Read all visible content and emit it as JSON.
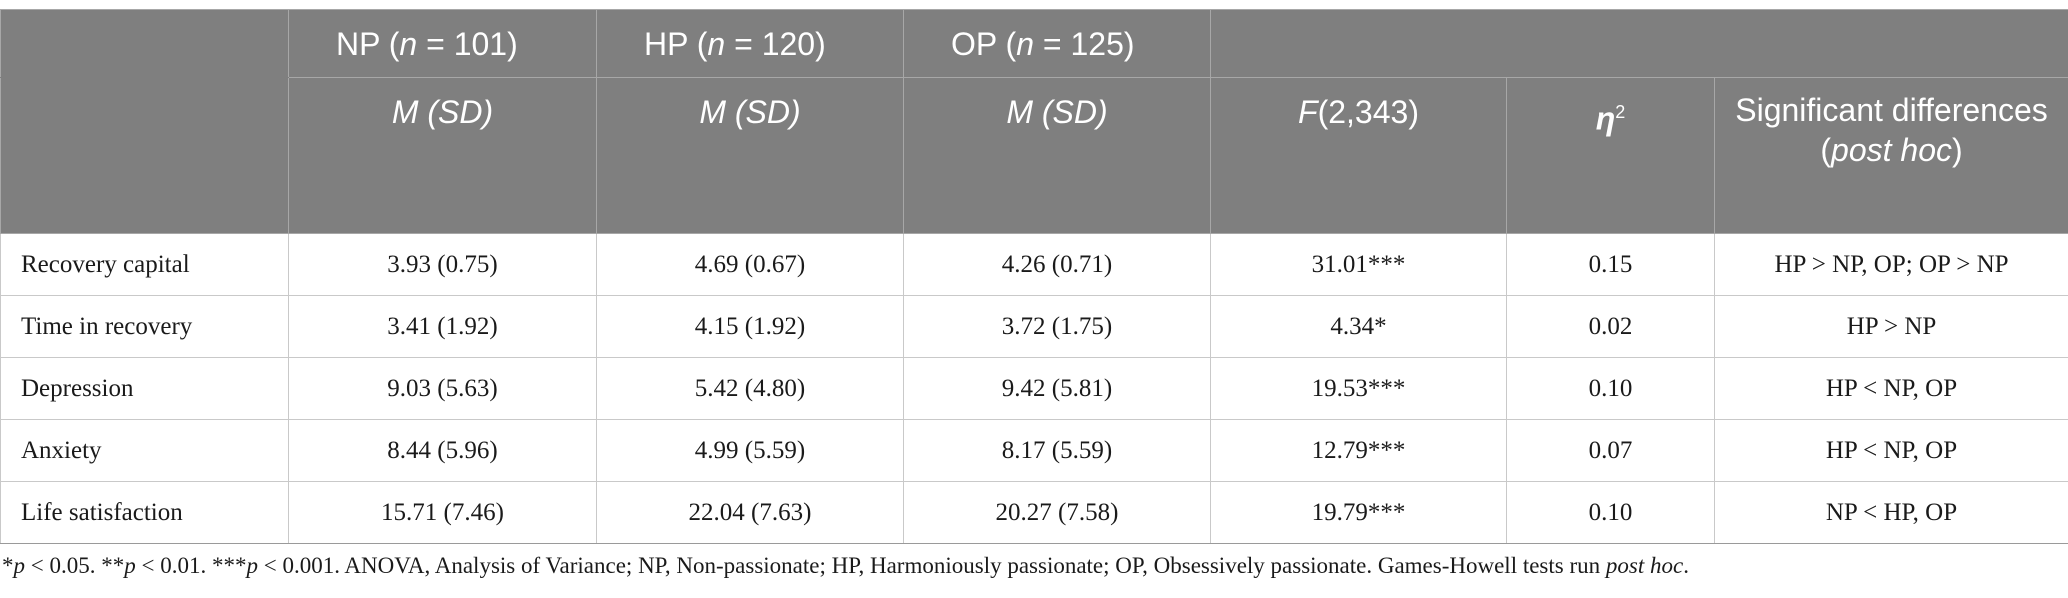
{
  "table": {
    "group_headers": [
      {
        "code": "NP",
        "n": "101"
      },
      {
        "code": "HP",
        "n": "120"
      },
      {
        "code": "OP",
        "n": "125"
      }
    ],
    "stat_header": "M (SD)",
    "f_header_letter": "F",
    "f_header_df": "(2,343)",
    "eta_header": "η",
    "eta_sup": "2",
    "sig_header_a": "Significant differences (",
    "sig_header_italic": "post hoc",
    "sig_header_b": ")",
    "rows": [
      {
        "label": "Recovery capital",
        "np": "3.93 (0.75)",
        "hp": "4.69 (0.67)",
        "op": "4.26 (0.71)",
        "f": "31.01***",
        "eta": "0.15",
        "sig": "HP > NP, OP; OP > NP"
      },
      {
        "label": "Time in recovery",
        "np": "3.41 (1.92)",
        "hp": "4.15 (1.92)",
        "op": "3.72 (1.75)",
        "f": "4.34*",
        "eta": "0.02",
        "sig": "HP > NP"
      },
      {
        "label": "Depression",
        "np": "9.03 (5.63)",
        "hp": "5.42 (4.80)",
        "op": "9.42 (5.81)",
        "f": "19.53***",
        "eta": "0.10",
        "sig": "HP < NP, OP"
      },
      {
        "label": "Anxiety",
        "np": "8.44 (5.96)",
        "hp": "4.99 (5.59)",
        "op": "8.17 (5.59)",
        "f": "12.79***",
        "eta": "0.07",
        "sig": "HP < NP, OP"
      },
      {
        "label": "Life satisfaction",
        "np": "15.71 (7.46)",
        "hp": "22.04 (7.63)",
        "op": "20.27 (7.58)",
        "f": "19.79***",
        "eta": "0.10",
        "sig": "NP < HP, OP"
      }
    ]
  },
  "footnote": {
    "star1": "*",
    "p1": "p",
    "t1": " < 0.05. **",
    "p2": "p",
    "t2": " < 0.01. ***",
    "p3": "p",
    "t3": " < 0.001. ANOVA, Analysis of Variance; NP, Non-passionate; HP, Harmoniously passionate; OP, Obsessively passionate. Games-Howell tests run ",
    "italic_end": "post hoc",
    "end": "."
  }
}
